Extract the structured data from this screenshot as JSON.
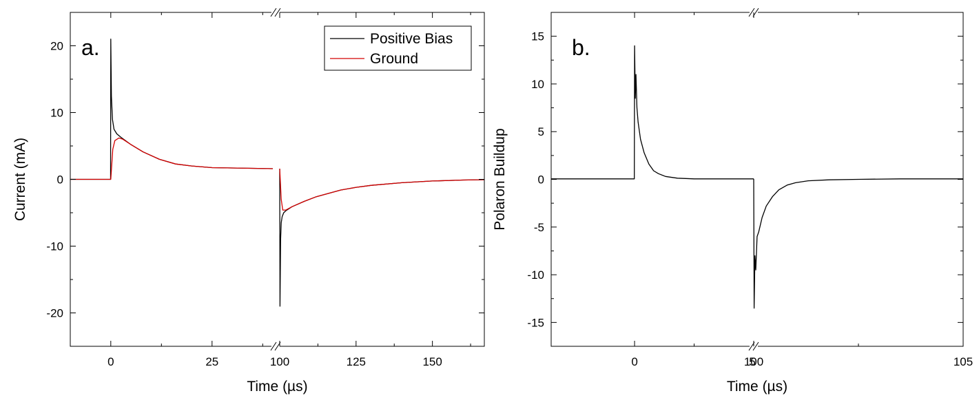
{
  "chart_data": [
    {
      "type": "line",
      "panel_label": "a.",
      "xlabel": "Time (µs)",
      "ylabel": "Current (mA)",
      "x_axis_break": true,
      "x_segments": [
        {
          "range": [
            -10,
            40
          ],
          "ticks": [
            0,
            25
          ]
        },
        {
          "range": [
            100,
            167
          ],
          "ticks": [
            100,
            125,
            150
          ]
        }
      ],
      "ylim": [
        -25,
        25
      ],
      "yticks": [
        -20,
        -10,
        0,
        10,
        20
      ],
      "grid": false,
      "legend": {
        "position": "top-right",
        "entries": [
          "Positive Bias",
          "Ground"
        ]
      },
      "series": [
        {
          "name": "Positive Bias",
          "color": "#000000",
          "segments": [
            {
              "x": [
                -10,
                -0.05,
                0,
                0.15,
                0.4,
                0.8,
                1.5,
                2.5,
                5,
                8,
                12,
                16,
                20,
                25,
                30,
                35,
                40
              ],
              "y": [
                0,
                0,
                21,
                12.5,
                9,
                7.5,
                6.8,
                6.3,
                5.2,
                4.1,
                3.0,
                2.3,
                2.0,
                1.75,
                1.7,
                1.65,
                1.6
              ]
            },
            {
              "x": [
                100,
                100.1,
                100.3,
                100.5,
                100.8,
                101.3,
                102,
                104,
                108,
                112,
                116,
                120,
                125,
                130,
                140,
                150,
                160,
                167
              ],
              "y": [
                1.6,
                -19,
                -9,
                -6.5,
                -5.6,
                -5,
                -4.7,
                -4.1,
                -3.3,
                -2.6,
                -2.1,
                -1.6,
                -1.2,
                -0.9,
                -0.5,
                -0.25,
                -0.1,
                -0.05
              ]
            }
          ]
        },
        {
          "name": "Ground",
          "color": "#d40000",
          "segments": [
            {
              "x": [
                -10,
                0,
                0.5,
                1,
                2,
                3,
                5,
                8,
                12,
                16,
                20,
                25,
                30,
                35,
                40
              ],
              "y": [
                0,
                0,
                4.5,
                5.8,
                6.2,
                6.0,
                5.2,
                4.1,
                3.0,
                2.3,
                2.0,
                1.75,
                1.7,
                1.65,
                1.6
              ]
            },
            {
              "x": [
                100,
                100.5,
                101,
                102,
                104,
                108,
                112,
                116,
                120,
                125,
                130,
                140,
                150,
                160,
                167
              ],
              "y": [
                1.6,
                -3,
                -4.6,
                -4.6,
                -4.1,
                -3.3,
                -2.6,
                -2.1,
                -1.6,
                -1.2,
                -0.9,
                -0.5,
                -0.25,
                -0.1,
                -0.05
              ]
            }
          ]
        }
      ]
    },
    {
      "type": "line",
      "panel_label": "b.",
      "xlabel": "Time (µs)",
      "ylabel": "Polaron Buildup",
      "x_axis_break": true,
      "x_segments": [
        {
          "range": [
            -3.5,
            5
          ],
          "ticks": [
            0
          ]
        },
        {
          "range": [
            100,
            105
          ],
          "ticks": [
            100,
            105
          ]
        }
      ],
      "break_tick_label": "5",
      "ylim": [
        -17.5,
        17.5
      ],
      "yticks": [
        -15,
        -10,
        -5,
        0,
        5,
        10,
        15
      ],
      "grid": false,
      "series": [
        {
          "name": "",
          "color": "#000000",
          "segments": [
            {
              "x": [
                -3.5,
                -0.01,
                0,
                0.03,
                0.06,
                0.1,
                0.15,
                0.25,
                0.4,
                0.6,
                0.8,
                1.0,
                1.3,
                1.8,
                2.5,
                3.5,
                5
              ],
              "y": [
                0.05,
                0.05,
                14,
                8.5,
                11,
                7.5,
                6,
                4.2,
                2.8,
                1.6,
                0.9,
                0.6,
                0.3,
                0.12,
                0.05,
                0.05,
                0.05
              ]
            },
            {
              "x": [
                100,
                100.01,
                100.03,
                100.05,
                100.08,
                100.12,
                100.2,
                100.3,
                100.45,
                100.6,
                100.8,
                101,
                101.3,
                101.8,
                102.5,
                103.5,
                105
              ],
              "y": [
                0.05,
                -13.5,
                -8,
                -9.5,
                -6,
                -5.5,
                -4,
                -2.8,
                -1.8,
                -1.1,
                -0.6,
                -0.35,
                -0.15,
                -0.05,
                0,
                0.05,
                0.05
              ]
            }
          ]
        }
      ]
    }
  ]
}
